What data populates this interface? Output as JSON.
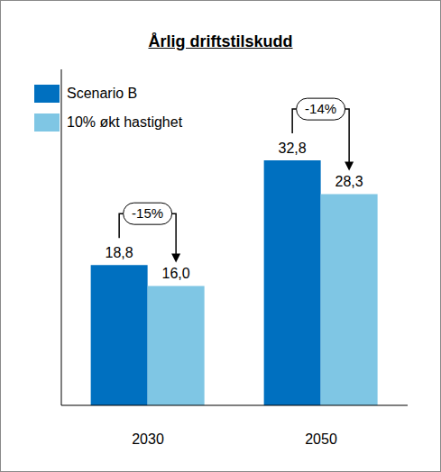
{
  "chart_data": {
    "type": "bar",
    "title": "Årlig driftstilskudd",
    "categories": [
      "2030",
      "2050"
    ],
    "series": [
      {
        "name": "Scenario B",
        "color": "#0070C0",
        "values": [
          18.8,
          32.8
        ],
        "value_labels": [
          "18,8",
          "32,8"
        ]
      },
      {
        "name": "10% økt hastighet",
        "color": "#7FC6E4",
        "values": [
          16.0,
          28.3
        ],
        "value_labels": [
          "16,0",
          "28,3"
        ]
      }
    ],
    "ylim": [
      0,
      45
    ],
    "data_labels": true,
    "tick_labels": "x",
    "legend": "top-left",
    "annotations": [
      {
        "text": "-15%",
        "category": "2030"
      },
      {
        "text": "-14%",
        "category": "2050"
      }
    ]
  }
}
